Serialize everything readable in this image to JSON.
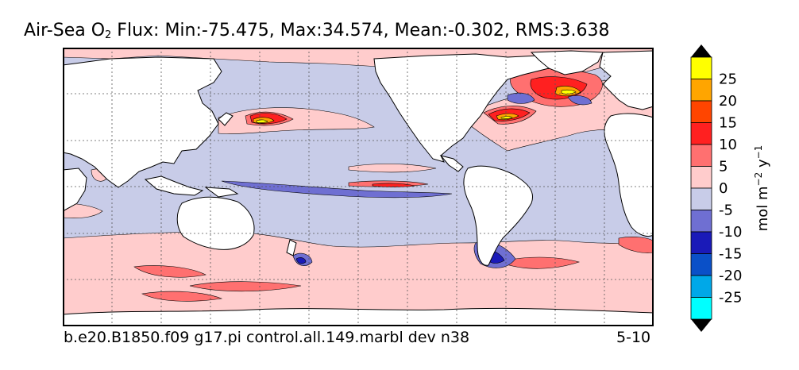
{
  "title": {
    "prefix": "Air-Sea O",
    "subscript": "2",
    "suffix": " Flux: Min:-75.475, Max:34.574, Mean:-0.302, RMS:3.638"
  },
  "footer": {
    "run_name": "b.e20.B1850.f09 g17.pi control.all.149.marbl dev n38",
    "date_range": "5-10"
  },
  "colorbar": {
    "label_main": "mol m",
    "label_exp1": "−2",
    "label_mid": " y",
    "label_exp2": "−1",
    "tick_labels": [
      "25",
      "20",
      "15",
      "10",
      "5",
      "0",
      "-5",
      "-10",
      "-15",
      "-20",
      "-25"
    ],
    "levels_top_to_bottom": [
      "#ffff00",
      "#ffa500",
      "#ff4500",
      "#ff2020",
      "#ff7070",
      "#ffcccc",
      "#c8cce8",
      "#6f6fd2",
      "#1a1ab8",
      "#0a50c8",
      "#00a8e8",
      "#00ffff"
    ],
    "overflow_colors": {
      "max": "#000000",
      "min": "#000000"
    }
  },
  "colors": {
    "background_flux": "#c8cce8",
    "land": "#ffffff",
    "positive_light": "#ffcccc",
    "positive_medium": "#ff7070",
    "positive_strong": "#ff2020",
    "positive_max": "#ffff00",
    "negative_medium": "#6f6fd2",
    "negative_strong": "#1a1ab8"
  }
}
